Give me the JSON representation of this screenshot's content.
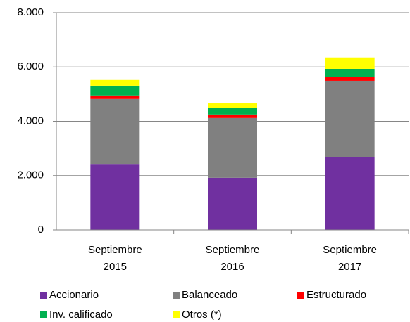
{
  "chart_data": {
    "type": "stacked_bar",
    "categories": [
      "Septiembre 2015",
      "Septiembre 2016",
      "Septiembre 2017"
    ],
    "series": [
      {
        "name": "Accionario",
        "color": "#7030a0",
        "values": [
          2430,
          1920,
          2690
        ]
      },
      {
        "name": "Balanceado",
        "color": "#808080",
        "values": [
          2390,
          2200,
          2800
        ]
      },
      {
        "name": "Estructurado",
        "color": "#ff0000",
        "values": [
          130,
          130,
          130
        ]
      },
      {
        "name": "Inv. calificado",
        "color": "#00b050",
        "values": [
          360,
          230,
          310
        ]
      },
      {
        "name": "Otros (*)",
        "color": "#ffff00",
        "values": [
          210,
          180,
          420
        ]
      }
    ],
    "ylim": [
      0,
      8000
    ],
    "yticks": [
      0,
      {
        "value": 2000,
        "label": "2.000"
      },
      {
        "value": 4000,
        "label": "4.000"
      },
      {
        "value": 6000,
        "label": "6.000"
      },
      {
        "value": 8000,
        "label": "8.000"
      }
    ],
    "grid": true
  }
}
